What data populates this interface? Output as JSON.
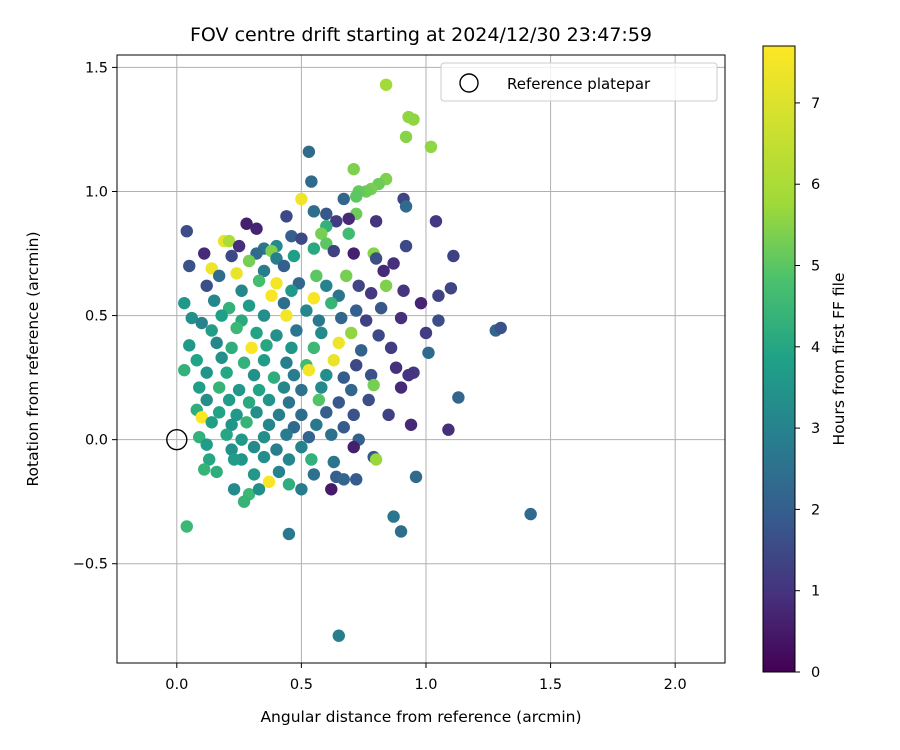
{
  "chart_data": {
    "type": "scatter",
    "title": "FOV centre drift starting at 2024/12/30 23:47:59",
    "xlabel": "Angular distance from reference (arcmin)",
    "ylabel": "Rotation from reference (arcmin)",
    "xlim": [
      -0.24,
      2.2
    ],
    "ylim": [
      -0.9,
      1.55
    ],
    "xticks": [
      0.0,
      0.5,
      1.0,
      1.5,
      2.0
    ],
    "xtick_labels": [
      "0.0",
      "0.5",
      "1.0",
      "1.5",
      "2.0"
    ],
    "yticks": [
      -0.5,
      0.0,
      0.5,
      1.0,
      1.5
    ],
    "ytick_labels": [
      "−0.5",
      "0.0",
      "0.5",
      "1.0",
      "1.5"
    ],
    "grid": true,
    "colormap": "viridis",
    "colorbar": {
      "label": "Hours from first FF file",
      "range": [
        0,
        7.7
      ],
      "ticks": [
        0,
        1,
        2,
        3,
        4,
        5,
        6,
        7
      ],
      "tick_labels": [
        "0",
        "1",
        "2",
        "3",
        "4",
        "5",
        "6",
        "7"
      ]
    },
    "legend": {
      "position": "top-right",
      "entries": [
        "Reference platepar"
      ]
    },
    "reference": {
      "x": 0.0,
      "y": 0.0,
      "label": "Reference platepar"
    },
    "points_columns": [
      "x",
      "y",
      "hours"
    ],
    "points": [
      [
        0.84,
        1.43,
        5.8
      ],
      [
        0.93,
        1.3,
        5.6
      ],
      [
        0.95,
        1.29,
        5.6
      ],
      [
        0.92,
        1.22,
        5.5
      ],
      [
        1.02,
        1.18,
        5.6
      ],
      [
        0.53,
        1.16,
        2.3
      ],
      [
        0.84,
        1.05,
        5.4
      ],
      [
        0.71,
        1.09,
        5.4
      ],
      [
        0.54,
        1.04,
        2.3
      ],
      [
        0.81,
        1.03,
        5.2
      ],
      [
        0.78,
        1.01,
        5.3
      ],
      [
        0.76,
        1.0,
        5.2
      ],
      [
        0.73,
        1.0,
        5.1
      ],
      [
        0.72,
        0.98,
        5.0
      ],
      [
        0.91,
        0.97,
        1.4
      ],
      [
        0.67,
        0.97,
        2.2
      ],
      [
        0.92,
        0.94,
        2.3
      ],
      [
        0.5,
        0.97,
        7.4
      ],
      [
        0.6,
        0.91,
        1.8
      ],
      [
        0.72,
        0.91,
        5.2
      ],
      [
        0.55,
        0.92,
        2.4
      ],
      [
        0.44,
        0.9,
        1.5
      ],
      [
        0.64,
        0.88,
        1.2
      ],
      [
        0.69,
        0.89,
        0.8
      ],
      [
        1.04,
        0.88,
        1.1
      ],
      [
        0.8,
        0.88,
        1.0
      ],
      [
        0.28,
        0.87,
        0.6
      ],
      [
        0.32,
        0.85,
        0.7
      ],
      [
        0.04,
        0.84,
        1.6
      ],
      [
        0.19,
        0.8,
        7.2
      ],
      [
        0.6,
        0.86,
        4.3
      ],
      [
        0.46,
        0.82,
        2.0
      ],
      [
        0.5,
        0.81,
        1.5
      ],
      [
        0.21,
        0.8,
        6.0
      ],
      [
        0.58,
        0.83,
        5.3
      ],
      [
        0.69,
        0.83,
        4.6
      ],
      [
        0.6,
        0.79,
        5.0
      ],
      [
        0.4,
        0.78,
        3.2
      ],
      [
        0.35,
        0.77,
        2.6
      ],
      [
        0.25,
        0.78,
        0.9
      ],
      [
        0.38,
        0.76,
        5.4
      ],
      [
        0.55,
        0.77,
        4.1
      ],
      [
        0.63,
        0.76,
        1.3
      ],
      [
        0.92,
        0.78,
        1.5
      ],
      [
        0.11,
        0.75,
        0.8
      ],
      [
        0.22,
        0.74,
        1.5
      ],
      [
        0.32,
        0.75,
        2.3
      ],
      [
        0.47,
        0.74,
        3.8
      ],
      [
        0.71,
        0.75,
        0.6
      ],
      [
        0.79,
        0.75,
        5.5
      ],
      [
        0.8,
        0.73,
        1.6
      ],
      [
        0.87,
        0.71,
        0.9
      ],
      [
        1.11,
        0.74,
        1.3
      ],
      [
        0.29,
        0.72,
        5.3
      ],
      [
        0.4,
        0.73,
        2.9
      ],
      [
        0.05,
        0.7,
        1.7
      ],
      [
        0.14,
        0.69,
        7.4
      ],
      [
        0.24,
        0.67,
        7.3
      ],
      [
        0.35,
        0.68,
        2.8
      ],
      [
        0.43,
        0.7,
        2.0
      ],
      [
        0.56,
        0.66,
        5.0
      ],
      [
        0.68,
        0.66,
        5.3
      ],
      [
        0.83,
        0.68,
        0.8
      ],
      [
        0.17,
        0.66,
        2.4
      ],
      [
        0.33,
        0.64,
        4.7
      ],
      [
        0.4,
        0.63,
        7.5
      ],
      [
        0.49,
        0.63,
        2.2
      ],
      [
        0.6,
        0.62,
        3.0
      ],
      [
        0.73,
        0.62,
        1.4
      ],
      [
        0.84,
        0.62,
        5.4
      ],
      [
        0.12,
        0.62,
        1.6
      ],
      [
        0.26,
        0.6,
        3.1
      ],
      [
        0.38,
        0.58,
        7.6
      ],
      [
        0.46,
        0.6,
        3.6
      ],
      [
        0.55,
        0.57,
        7.6
      ],
      [
        0.65,
        0.58,
        2.6
      ],
      [
        0.78,
        0.59,
        1.1
      ],
      [
        0.91,
        0.6,
        1.0
      ],
      [
        1.1,
        0.61,
        1.4
      ],
      [
        1.05,
        0.58,
        1.3
      ],
      [
        0.03,
        0.55,
        3.6
      ],
      [
        0.15,
        0.56,
        3.1
      ],
      [
        0.21,
        0.53,
        4.3
      ],
      [
        0.29,
        0.54,
        3.7
      ],
      [
        0.43,
        0.55,
        2.4
      ],
      [
        0.52,
        0.52,
        3.1
      ],
      [
        0.62,
        0.55,
        4.4
      ],
      [
        0.72,
        0.52,
        2.0
      ],
      [
        0.82,
        0.53,
        1.8
      ],
      [
        0.98,
        0.55,
        0.7
      ],
      [
        0.06,
        0.49,
        3.4
      ],
      [
        0.1,
        0.47,
        3.0
      ],
      [
        0.18,
        0.5,
        3.8
      ],
      [
        0.26,
        0.48,
        4.1
      ],
      [
        0.35,
        0.5,
        3.3
      ],
      [
        0.44,
        0.5,
        7.5
      ],
      [
        0.57,
        0.48,
        2.7
      ],
      [
        0.66,
        0.49,
        2.2
      ],
      [
        0.76,
        0.48,
        1.3
      ],
      [
        0.9,
        0.49,
        0.9
      ],
      [
        1.05,
        0.48,
        1.6
      ],
      [
        0.14,
        0.44,
        3.7
      ],
      [
        0.24,
        0.45,
        4.5
      ],
      [
        0.32,
        0.43,
        3.9
      ],
      [
        0.4,
        0.42,
        3.4
      ],
      [
        0.48,
        0.44,
        2.6
      ],
      [
        0.58,
        0.43,
        3.2
      ],
      [
        0.7,
        0.43,
        5.6
      ],
      [
        0.81,
        0.42,
        1.5
      ],
      [
        1.0,
        0.43,
        1.2
      ],
      [
        1.28,
        0.44,
        2.2
      ],
      [
        1.3,
        0.45,
        1.7
      ],
      [
        0.05,
        0.38,
        3.6
      ],
      [
        0.16,
        0.39,
        3.1
      ],
      [
        0.22,
        0.37,
        4.2
      ],
      [
        0.3,
        0.37,
        7.6
      ],
      [
        0.36,
        0.38,
        4.0
      ],
      [
        0.46,
        0.37,
        3.5
      ],
      [
        0.55,
        0.37,
        4.5
      ],
      [
        0.65,
        0.39,
        7.4
      ],
      [
        0.74,
        0.36,
        2.1
      ],
      [
        0.86,
        0.37,
        1.2
      ],
      [
        1.01,
        0.35,
        2.3
      ],
      [
        0.08,
        0.32,
        3.9
      ],
      [
        0.18,
        0.33,
        3.4
      ],
      [
        0.27,
        0.31,
        4.3
      ],
      [
        0.35,
        0.32,
        3.7
      ],
      [
        0.44,
        0.31,
        2.9
      ],
      [
        0.52,
        0.3,
        4.6
      ],
      [
        0.63,
        0.32,
        7.3
      ],
      [
        0.72,
        0.3,
        1.5
      ],
      [
        0.88,
        0.29,
        0.9
      ],
      [
        0.95,
        0.27,
        1.1
      ],
      [
        0.03,
        0.28,
        4.3
      ],
      [
        0.12,
        0.27,
        3.5
      ],
      [
        0.2,
        0.27,
        4.0
      ],
      [
        0.31,
        0.26,
        3.4
      ],
      [
        0.39,
        0.25,
        4.2
      ],
      [
        0.47,
        0.26,
        2.8
      ],
      [
        0.53,
        0.28,
        7.5
      ],
      [
        0.6,
        0.26,
        3.3
      ],
      [
        0.67,
        0.25,
        1.9
      ],
      [
        0.78,
        0.26,
        1.7
      ],
      [
        0.93,
        0.26,
        1.0
      ],
      [
        0.09,
        0.21,
        3.8
      ],
      [
        0.17,
        0.21,
        4.4
      ],
      [
        0.25,
        0.2,
        3.6
      ],
      [
        0.33,
        0.2,
        3.9
      ],
      [
        0.43,
        0.21,
        3.1
      ],
      [
        0.5,
        0.2,
        2.5
      ],
      [
        0.58,
        0.21,
        3.2
      ],
      [
        0.7,
        0.2,
        2.2
      ],
      [
        0.79,
        0.22,
        5.3
      ],
      [
        0.9,
        0.21,
        0.8
      ],
      [
        0.12,
        0.16,
        3.3
      ],
      [
        0.21,
        0.16,
        3.7
      ],
      [
        0.29,
        0.15,
        4.1
      ],
      [
        0.37,
        0.16,
        3.5
      ],
      [
        0.45,
        0.15,
        2.6
      ],
      [
        0.57,
        0.16,
        4.9
      ],
      [
        0.65,
        0.15,
        1.8
      ],
      [
        0.77,
        0.16,
        1.6
      ],
      [
        1.13,
        0.17,
        2.2
      ],
      [
        0.08,
        0.12,
        4.2
      ],
      [
        0.17,
        0.11,
        3.9
      ],
      [
        0.24,
        0.1,
        3.6
      ],
      [
        0.32,
        0.11,
        3.3
      ],
      [
        0.41,
        0.1,
        2.9
      ],
      [
        0.5,
        0.1,
        2.4
      ],
      [
        0.6,
        0.11,
        2.0
      ],
      [
        0.71,
        0.1,
        1.7
      ],
      [
        0.85,
        0.1,
        1.3
      ],
      [
        0.1,
        0.09,
        7.7
      ],
      [
        0.14,
        0.07,
        3.8
      ],
      [
        0.22,
        0.06,
        3.5
      ],
      [
        0.28,
        0.07,
        4.4
      ],
      [
        0.37,
        0.06,
        3.1
      ],
      [
        0.47,
        0.05,
        2.3
      ],
      [
        0.56,
        0.06,
        2.7
      ],
      [
        0.67,
        0.05,
        1.9
      ],
      [
        0.94,
        0.06,
        0.8
      ],
      [
        1.09,
        0.04,
        0.9
      ],
      [
        0.09,
        0.01,
        4.3
      ],
      [
        0.2,
        0.02,
        4.0
      ],
      [
        0.26,
        0.0,
        3.6
      ],
      [
        0.35,
        0.01,
        3.3
      ],
      [
        0.44,
        0.02,
        2.8
      ],
      [
        0.53,
        0.01,
        2.2
      ],
      [
        0.62,
        0.02,
        2.5
      ],
      [
        0.73,
        0.0,
        2.0
      ],
      [
        0.12,
        -0.02,
        3.7
      ],
      [
        0.22,
        -0.04,
        3.4
      ],
      [
        0.31,
        -0.03,
        3.2
      ],
      [
        0.4,
        -0.04,
        2.9
      ],
      [
        0.5,
        -0.03,
        3.0
      ],
      [
        0.71,
        -0.03,
        0.6
      ],
      [
        0.79,
        -0.07,
        1.8
      ],
      [
        0.13,
        -0.08,
        4.0
      ],
      [
        0.26,
        -0.08,
        3.5
      ],
      [
        0.35,
        -0.07,
        3.3
      ],
      [
        0.45,
        -0.08,
        3.1
      ],
      [
        0.54,
        -0.08,
        4.3
      ],
      [
        0.63,
        -0.09,
        2.6
      ],
      [
        0.8,
        -0.08,
        5.7
      ],
      [
        0.11,
        -0.12,
        4.4
      ],
      [
        0.16,
        -0.13,
        4.2
      ],
      [
        0.23,
        -0.08,
        3.7
      ],
      [
        0.31,
        -0.14,
        3.6
      ],
      [
        0.41,
        -0.13,
        3.0
      ],
      [
        0.55,
        -0.14,
        2.5
      ],
      [
        0.64,
        -0.15,
        2.0
      ],
      [
        0.67,
        -0.16,
        2.2
      ],
      [
        0.72,
        -0.16,
        1.9
      ],
      [
        0.96,
        -0.15,
        2.3
      ],
      [
        0.37,
        -0.17,
        7.6
      ],
      [
        0.45,
        -0.18,
        4.2
      ],
      [
        0.23,
        -0.2,
        3.2
      ],
      [
        0.29,
        -0.22,
        4.5
      ],
      [
        0.33,
        -0.2,
        3.3
      ],
      [
        0.5,
        -0.2,
        2.8
      ],
      [
        0.62,
        -0.2,
        0.5
      ],
      [
        0.27,
        -0.25,
        4.4
      ],
      [
        0.04,
        -0.35,
        4.5
      ],
      [
        0.45,
        -0.38,
        2.7
      ],
      [
        0.87,
        -0.31,
        2.6
      ],
      [
        0.9,
        -0.37,
        2.4
      ],
      [
        1.42,
        -0.3,
        2.3
      ],
      [
        0.65,
        -0.79,
        2.9
      ]
    ]
  }
}
